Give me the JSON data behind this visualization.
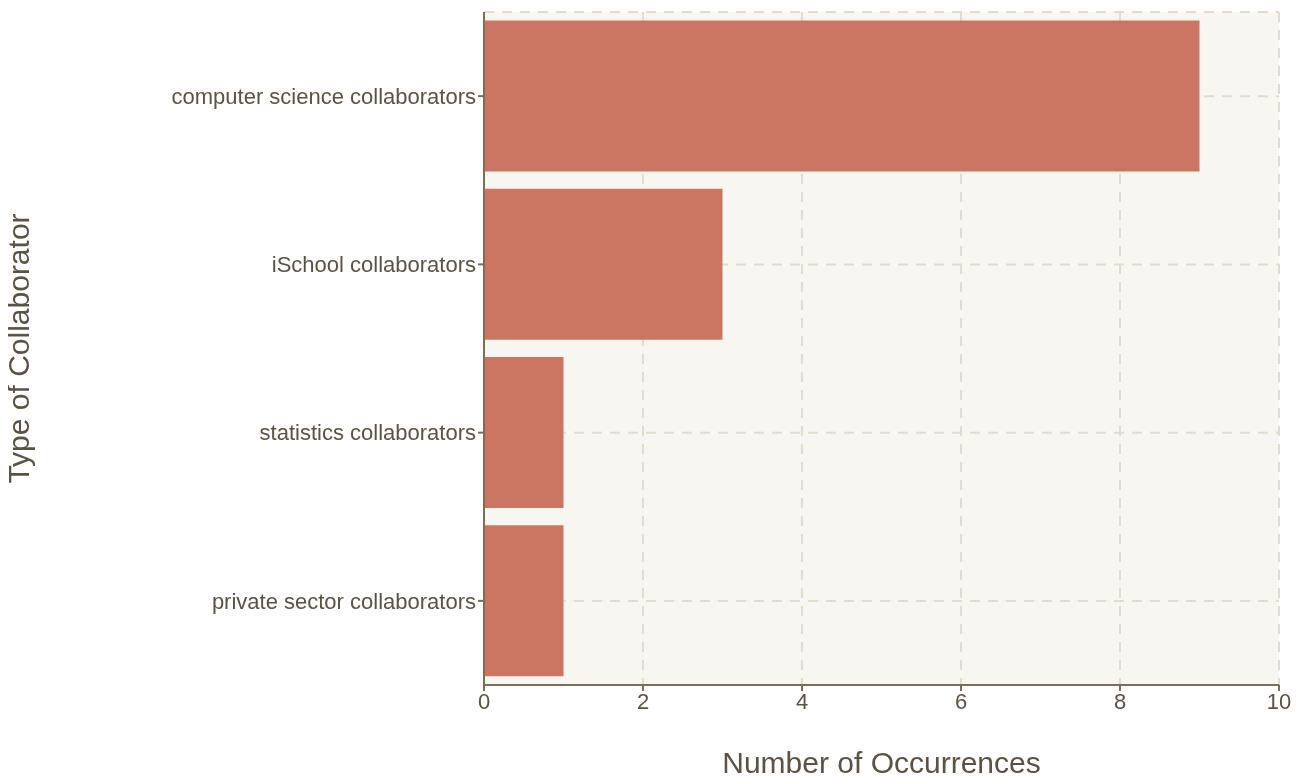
{
  "chart_data": {
    "type": "bar",
    "orientation": "horizontal",
    "xlabel": "Number of Occurrences",
    "ylabel": "Type of Collaborator",
    "categories": [
      "computer science collaborators",
      "iSchool collaborators",
      "statistics collaborators",
      "private sector collaborators"
    ],
    "values": [
      9,
      3,
      1,
      1
    ],
    "color": "#cb7662",
    "xlim": [
      0,
      10
    ],
    "xticks": [
      0,
      2,
      4,
      6,
      8,
      10
    ],
    "grid": true
  }
}
